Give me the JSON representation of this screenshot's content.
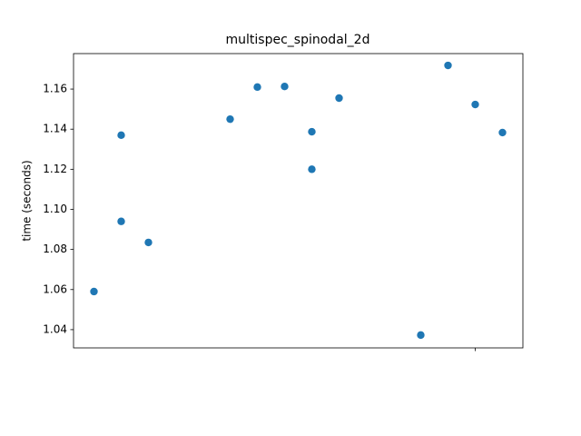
{
  "chart_data": {
    "type": "scatter",
    "title": "multispec_spinodal_2d",
    "ylabel": "time (seconds)",
    "x": [
      0,
      1,
      1,
      2,
      5,
      6,
      7,
      8,
      8,
      9,
      12,
      13,
      14,
      15
    ],
    "values": [
      1.059,
      1.137,
      1.094,
      1.0835,
      1.145,
      1.161,
      1.1613,
      1.1387,
      1.12,
      1.1555,
      1.0373,
      1.1718,
      1.1523,
      1.1383
    ],
    "color": "#1f77b4",
    "xlim": [
      -0.75,
      15.75
    ],
    "xticks": [
      {
        "value": 14,
        "label": null
      }
    ],
    "ylim": [
      1.0309,
      1.1777
    ],
    "yticks": [
      1.04,
      1.06,
      1.08,
      {
        "value": 1.1,
        "label": "1.10"
      },
      1.12,
      1.14,
      1.16
    ],
    "grid": false
  }
}
